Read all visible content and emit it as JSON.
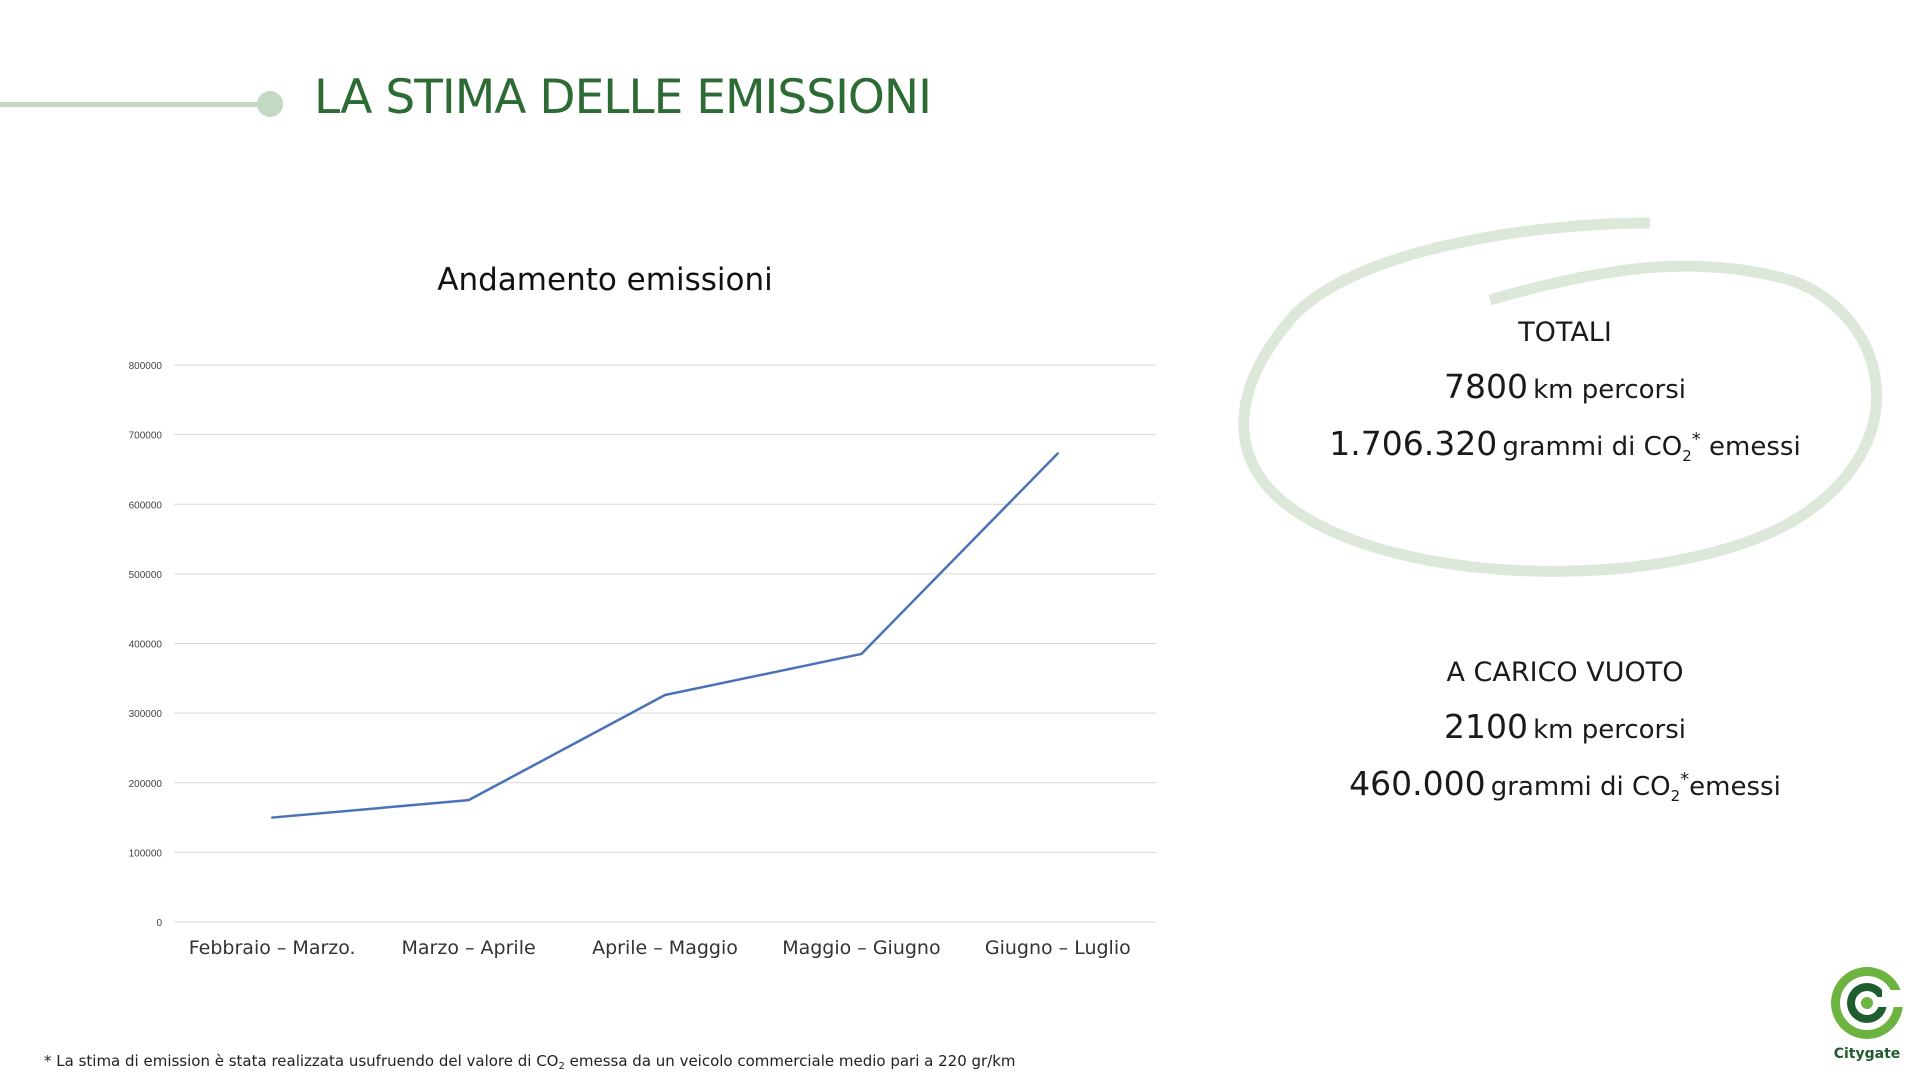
{
  "header": {
    "title": "LA STIMA DELLE EMISSIONI"
  },
  "chart_data": {
    "type": "line",
    "title": "Andamento emissioni",
    "xlabel": "",
    "ylabel": "",
    "categories": [
      "Febbraio – Marzo.",
      "Marzo – Aprile",
      "Aprile – Maggio",
      "Maggio – Giugno",
      "Giugno – Luglio"
    ],
    "series": [
      {
        "values": [
          150000,
          175000,
          326000,
          385000,
          673000
        ],
        "color": "#4a72b8"
      }
    ],
    "ylim": [
      0,
      800000
    ],
    "yticks": [
      "0",
      "100000",
      "200000",
      "300000",
      "400000",
      "500000",
      "600000",
      "700000",
      "800000"
    ],
    "grid": true,
    "legend": "none"
  },
  "totals": {
    "heading": "TOTALI",
    "km_value": "7800",
    "km_label": "km percorsi",
    "grams_value": "1.706.320",
    "grams_label_prefix": "grammi di CO",
    "grams_subscript": "2",
    "grams_asterisk": "*",
    "grams_suffix": "emessi"
  },
  "empty_load": {
    "heading": "A CARICO VUOTO",
    "km_value": "2100",
    "km_label": "km percorsi",
    "grams_value": "460.000",
    "grams_label_prefix": "grammi di CO",
    "grams_subscript": "2",
    "grams_asterisk": "*",
    "grams_suffix": "emessi"
  },
  "footnote": {
    "prefix": "* La stima di emission è stata realizzata usufruendo del valore di CO",
    "subscript": "2",
    "suffix": " emessa da un veicolo commerciale medio pari a 220 gr/km"
  },
  "logo": {
    "name": "Citygate",
    "colors": {
      "green": "#6db33f",
      "dark": "#1f5c2e"
    }
  },
  "colors": {
    "title_green": "#2c6b34",
    "accent_light_green": "#c4d9c1",
    "line_blue": "#4a72b8",
    "grid": "#d9d9d9"
  }
}
